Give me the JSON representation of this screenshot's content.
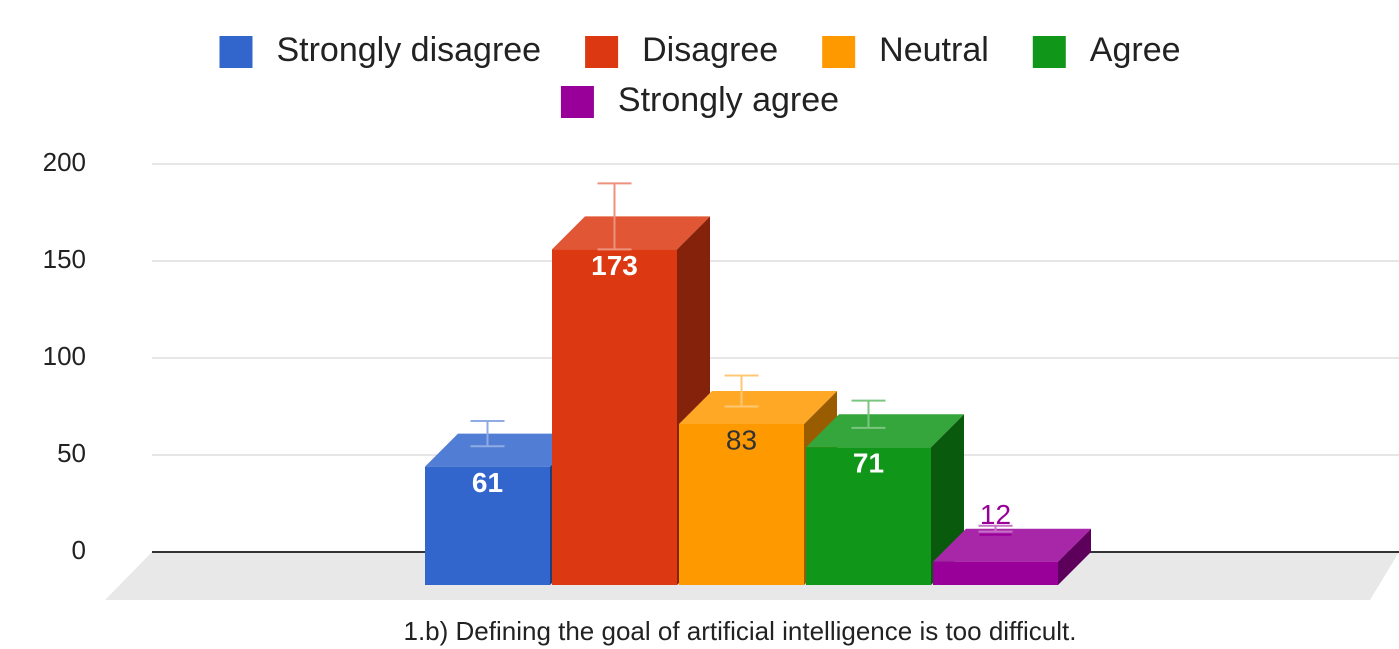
{
  "chart_data": {
    "type": "bar3d",
    "x_label": "1.b) Defining the goal of artificial intelligence is too difficult.",
    "series": [
      {
        "name": "Strongly disagree",
        "color": "#3366cc",
        "values": [
          61
        ],
        "errors": [
          6.5
        ]
      },
      {
        "name": "Disagree",
        "color": "#dc3912",
        "values": [
          173
        ],
        "errors": [
          17
        ]
      },
      {
        "name": "Neutral",
        "color": "#ff9900",
        "values": [
          83
        ],
        "errors": [
          8
        ]
      },
      {
        "name": "Agree",
        "color": "#109618",
        "values": [
          71
        ],
        "errors": [
          7
        ]
      },
      {
        "name": "Strongly agree",
        "color": "#990099",
        "values": [
          12
        ],
        "errors": [
          1.5
        ]
      }
    ],
    "ylim": [
      0,
      200
    ],
    "yticks": [
      0,
      50,
      100,
      150,
      200
    ],
    "grid": true,
    "legend": "top"
  }
}
